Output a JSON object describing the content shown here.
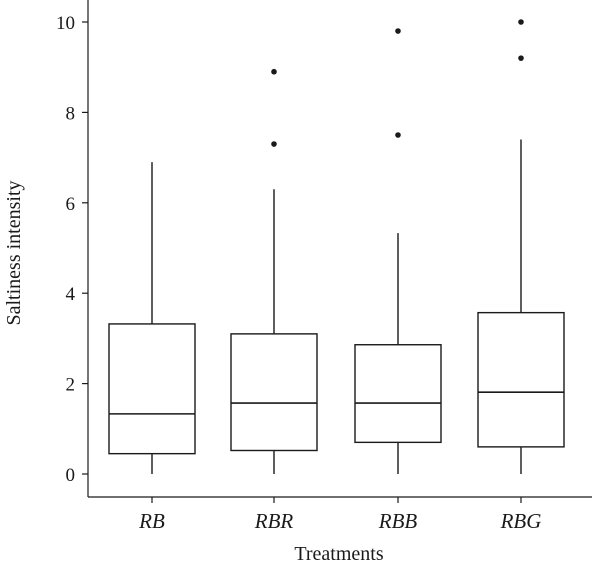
{
  "chart_data": {
    "type": "box",
    "xlabel": "Treatments",
    "ylabel": "Saltiness intensity",
    "ylim": [
      0,
      10
    ],
    "yticks": [
      0,
      2,
      4,
      6,
      8,
      10
    ],
    "y_tick_labels": [
      "0",
      "2",
      "4",
      "6",
      "8",
      "10"
    ],
    "categories": [
      "RB",
      "RBR",
      "RBB",
      "RBG"
    ],
    "boxes": [
      {
        "category": "RB",
        "whisker_low": 0,
        "q1": 0.45,
        "median": 1.33,
        "q3": 3.32,
        "whisker_high": 6.9,
        "outliers": []
      },
      {
        "category": "RBR",
        "whisker_low": 0,
        "q1": 0.52,
        "median": 1.57,
        "q3": 3.1,
        "whisker_high": 6.3,
        "outliers": [
          7.3,
          8.9
        ]
      },
      {
        "category": "RBB",
        "whisker_low": 0,
        "q1": 0.7,
        "median": 1.57,
        "q3": 2.86,
        "whisker_high": 5.33,
        "outliers": [
          7.5,
          9.8
        ]
      },
      {
        "category": "RBG",
        "whisker_low": 0,
        "q1": 0.6,
        "median": 1.81,
        "q3": 3.57,
        "whisker_high": 7.4,
        "outliers": [
          9.2,
          10.0
        ]
      }
    ],
    "grid": false,
    "legend": "none"
  }
}
